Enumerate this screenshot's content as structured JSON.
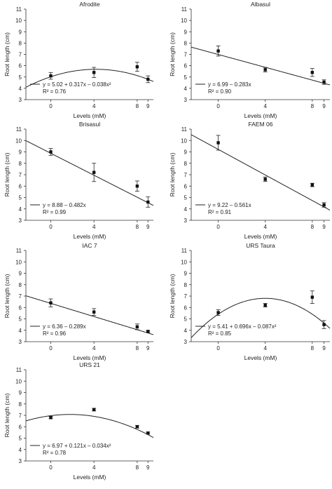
{
  "chart_data": [
    {
      "type": "scatter",
      "title": "Afrodite",
      "xlabel": "Levels (mM)",
      "ylabel": "Root length (cm)",
      "xlim": [
        -2.3,
        9.5
      ],
      "ylim": [
        3,
        11
      ],
      "x_ticks": [
        "0",
        "4",
        "8",
        "9"
      ],
      "y_ticks": [
        "3",
        "4",
        "5",
        "6",
        "7",
        "8",
        "9",
        "10",
        "11"
      ],
      "points": [
        {
          "x": 0,
          "y": 5.1,
          "err": 0.3
        },
        {
          "x": 4,
          "y": 5.4,
          "err": 0.45
        },
        {
          "x": 8,
          "y": 5.9,
          "err": 0.4
        },
        {
          "x": 9,
          "y": 4.8,
          "err": 0.3
        }
      ],
      "fit": {
        "type": "quadratic",
        "a": 5.02,
        "b": 0.317,
        "c": -0.038
      },
      "equation": "y = 5.02 + 0.317x – 0.038x²",
      "r2_label": "R² = 0.76"
    },
    {
      "type": "scatter",
      "title": "Albasul",
      "xlabel": "Levels (mM)",
      "ylabel": "Root length (cm)",
      "xlim": [
        -2.3,
        9.5
      ],
      "ylim": [
        3,
        11
      ],
      "x_ticks": [
        "0",
        "4",
        "8",
        "9"
      ],
      "y_ticks": [
        "3",
        "4",
        "5",
        "6",
        "7",
        "8",
        "9",
        "10",
        "11"
      ],
      "points": [
        {
          "x": 0,
          "y": 7.3,
          "err": 0.45
        },
        {
          "x": 4,
          "y": 5.65,
          "err": 0.2
        },
        {
          "x": 8,
          "y": 5.4,
          "err": 0.35
        },
        {
          "x": 9,
          "y": 4.55,
          "err": 0.2
        }
      ],
      "fit": {
        "type": "linear",
        "a": 6.99,
        "b": -0.283
      },
      "equation": "y = 6.99 – 0.283x",
      "r2_label": "R² = 0.90"
    },
    {
      "type": "scatter",
      "title": "Brisasul",
      "xlabel": "Levels (mM)",
      "ylabel": "Root length (cm)",
      "xlim": [
        -2.3,
        9.5
      ],
      "ylim": [
        3,
        11
      ],
      "x_ticks": [
        "0",
        "4",
        "8",
        "9"
      ],
      "y_ticks": [
        "3",
        "4",
        "5",
        "6",
        "7",
        "8",
        "9",
        "10",
        "11"
      ],
      "points": [
        {
          "x": 0,
          "y": 9.0,
          "err": 0.3
        },
        {
          "x": 4,
          "y": 7.2,
          "err": 0.8
        },
        {
          "x": 8,
          "y": 6.0,
          "err": 0.45
        },
        {
          "x": 9,
          "y": 4.6,
          "err": 0.45
        }
      ],
      "fit": {
        "type": "linear",
        "a": 8.88,
        "b": -0.482
      },
      "equation": "y = 8.88 – 0.482x",
      "r2_label": "R² = 0.99"
    },
    {
      "type": "scatter",
      "title": "FAEM 06",
      "xlabel": "Levels (mM)",
      "ylabel": "Root length (cm)",
      "xlim": [
        -2.3,
        9.5
      ],
      "ylim": [
        3,
        11
      ],
      "x_ticks": [
        "0",
        "4",
        "8",
        "9"
      ],
      "y_ticks": [
        "3",
        "4",
        "5",
        "6",
        "7",
        "8",
        "9",
        "10",
        "11"
      ],
      "points": [
        {
          "x": 0,
          "y": 9.8,
          "err": 0.65
        },
        {
          "x": 4,
          "y": 6.6,
          "err": 0.2
        },
        {
          "x": 8,
          "y": 6.1,
          "err": 0.15
        },
        {
          "x": 9,
          "y": 4.35,
          "err": 0.2
        }
      ],
      "fit": {
        "type": "linear",
        "a": 9.22,
        "b": -0.561
      },
      "equation": "y = 9.22 – 0.561x",
      "r2_label": "R² = 0.91"
    },
    {
      "type": "scatter",
      "title": "IAC 7",
      "xlabel": "Levels (mM)",
      "ylabel": "Root length (cm)",
      "xlim": [
        -2.3,
        9.5
      ],
      "ylim": [
        3,
        11
      ],
      "x_ticks": [
        "0",
        "4",
        "8",
        "9"
      ],
      "y_ticks": [
        "3",
        "4",
        "5",
        "6",
        "7",
        "8",
        "9",
        "10",
        "11"
      ],
      "points": [
        {
          "x": 0,
          "y": 6.4,
          "err": 0.35
        },
        {
          "x": 4,
          "y": 5.6,
          "err": 0.3
        },
        {
          "x": 8,
          "y": 4.3,
          "err": 0.25
        },
        {
          "x": 9,
          "y": 3.9,
          "err": 0.08
        }
      ],
      "fit": {
        "type": "linear",
        "a": 6.36,
        "b": -0.289
      },
      "equation": "y = 6.36 – 0.289x",
      "r2_label": "R² = 0.96"
    },
    {
      "type": "scatter",
      "title": "URS Taura",
      "xlabel": "Levels (mM)",
      "ylabel": "Root length (cm)",
      "xlim": [
        -2.3,
        9.5
      ],
      "ylim": [
        3,
        11
      ],
      "x_ticks": [
        "0",
        "4",
        "8",
        "9"
      ],
      "y_ticks": [
        "3",
        "4",
        "5",
        "6",
        "7",
        "8",
        "9",
        "10",
        "11"
      ],
      "points": [
        {
          "x": 0,
          "y": 5.55,
          "err": 0.25
        },
        {
          "x": 4,
          "y": 6.2,
          "err": 0.15
        },
        {
          "x": 8,
          "y": 6.9,
          "err": 0.55
        },
        {
          "x": 9,
          "y": 4.5,
          "err": 0.35
        }
      ],
      "fit": {
        "type": "quadratic",
        "a": 5.41,
        "b": 0.696,
        "c": -0.087
      },
      "equation": "y = 5.41 + 0.696x – 0.087x²",
      "r2_label": "R² = 0.85"
    },
    {
      "type": "scatter",
      "title": "URS 21",
      "xlabel": "Levels (mM)",
      "ylabel": "Root length (cm)",
      "xlim": [
        -2.3,
        9.5
      ],
      "ylim": [
        3,
        11
      ],
      "x_ticks": [
        "0",
        "4",
        "8",
        "9"
      ],
      "y_ticks": [
        "3",
        "4",
        "5",
        "6",
        "7",
        "8",
        "9",
        "10",
        "11"
      ],
      "points": [
        {
          "x": 0,
          "y": 6.8,
          "err": 0.1
        },
        {
          "x": 4,
          "y": 7.5,
          "err": 0.12
        },
        {
          "x": 8,
          "y": 6.0,
          "err": 0.12
        },
        {
          "x": 9,
          "y": 5.45,
          "err": 0.08
        }
      ],
      "fit": {
        "type": "quadratic",
        "a": 6.97,
        "b": 0.121,
        "c": -0.034
      },
      "equation": "y = 6.97 + 0.121x – 0.034x²",
      "r2_label": "R² = 0.78"
    }
  ]
}
